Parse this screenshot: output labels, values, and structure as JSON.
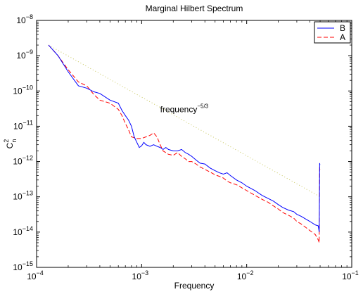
{
  "chart_data": {
    "type": "line",
    "title": "Marginal Hilbert Spectrum",
    "xlabel": "Frequency",
    "ylabel": "C",
    "ylabel_sup": "2",
    "ylabel_sub": "n",
    "xscale": "log",
    "yscale": "log",
    "xlim": [
      0.0001,
      0.1
    ],
    "ylim": [
      1e-15,
      1e-08
    ],
    "grid": false,
    "legend_position": "top-right",
    "x_ticks": [
      {
        "base": "10",
        "exp": "−4"
      },
      {
        "base": "10",
        "exp": "−3"
      },
      {
        "base": "10",
        "exp": "−2"
      },
      {
        "base": "10",
        "exp": "−1"
      }
    ],
    "y_ticks": [
      {
        "base": "10",
        "exp": "−15"
      },
      {
        "base": "10",
        "exp": "−14"
      },
      {
        "base": "10",
        "exp": "−13"
      },
      {
        "base": "10",
        "exp": "−12"
      },
      {
        "base": "10",
        "exp": "−11"
      },
      {
        "base": "10",
        "exp": "−10"
      },
      {
        "base": "10",
        "exp": "−9"
      },
      {
        "base": "10",
        "exp": "−8"
      }
    ],
    "annotation": {
      "base": "frequency",
      "exp": "−5/3",
      "x": 0.0015,
      "y": 1e-10
    },
    "reference_line": {
      "x": [
        0.00013,
        0.05
      ],
      "y": [
        2e-09,
        1e-13
      ],
      "color": "#c8c860",
      "style": "dotted"
    },
    "series": [
      {
        "name": "B",
        "color": "#0000ff",
        "style": "solid",
        "points": [
          [
            0.00013,
            2e-09
          ],
          [
            0.00016,
            1e-09
          ],
          [
            0.0002,
            3.5e-10
          ],
          [
            0.00025,
            1.4e-10
          ],
          [
            0.0003,
            1.2e-10
          ],
          [
            0.00035,
            9.5e-11
          ],
          [
            0.0004,
            8.5e-11
          ],
          [
            0.0005,
            5.5e-11
          ],
          [
            0.0006,
            4.5e-11
          ],
          [
            0.00065,
            2.8e-11
          ],
          [
            0.0007,
            2e-11
          ],
          [
            0.00075,
            1.5e-11
          ],
          [
            0.0008,
            1e-11
          ],
          [
            0.00085,
            5e-12
          ],
          [
            0.0009,
            3.5e-12
          ],
          [
            0.00095,
            2.5e-12
          ],
          [
            0.001,
            2.8e-12
          ],
          [
            0.00105,
            3.5e-12
          ],
          [
            0.0011,
            3e-12
          ],
          [
            0.0012,
            2.7e-12
          ],
          [
            0.0013,
            3e-12
          ],
          [
            0.0014,
            2.7e-12
          ],
          [
            0.0015,
            2.5e-12
          ],
          [
            0.0016,
            2.2e-12
          ],
          [
            0.0017,
            2.5e-12
          ],
          [
            0.0018,
            2.2e-12
          ],
          [
            0.002,
            2e-12
          ],
          [
            0.0022,
            2e-12
          ],
          [
            0.0024,
            2.2e-12
          ],
          [
            0.0026,
            1.8e-12
          ],
          [
            0.0028,
            1.6e-12
          ],
          [
            0.003,
            1.4e-12
          ],
          [
            0.0033,
            1.1e-12
          ],
          [
            0.0036,
            9e-13
          ],
          [
            0.004,
            8.5e-13
          ],
          [
            0.0045,
            6.5e-13
          ],
          [
            0.005,
            5.5e-13
          ],
          [
            0.0055,
            4.8e-13
          ],
          [
            0.006,
            4.4e-13
          ],
          [
            0.0065,
            4.8e-13
          ],
          [
            0.007,
            4e-13
          ],
          [
            0.008,
            3e-13
          ],
          [
            0.009,
            2.5e-13
          ],
          [
            0.01,
            2e-13
          ],
          [
            0.012,
            1.5e-13
          ],
          [
            0.014,
            1.1e-13
          ],
          [
            0.016,
            9e-14
          ],
          [
            0.018,
            7.5e-14
          ],
          [
            0.02,
            6e-14
          ],
          [
            0.022,
            5e-14
          ],
          [
            0.025,
            4.2e-14
          ],
          [
            0.028,
            3.8e-14
          ],
          [
            0.03,
            3.2e-14
          ],
          [
            0.033,
            2.8e-14
          ],
          [
            0.036,
            2.4e-14
          ],
          [
            0.04,
            2e-14
          ],
          [
            0.045,
            1.6e-14
          ],
          [
            0.048,
            1.5e-14
          ],
          [
            0.049,
            1e-14
          ],
          [
            0.0495,
            9e-13
          ],
          [
            0.0498,
            8e-13
          ]
        ]
      },
      {
        "name": "A",
        "color": "#ff0000",
        "style": "dashed",
        "points": [
          [
            0.00013,
            2e-09
          ],
          [
            0.00016,
            1e-09
          ],
          [
            0.0002,
            4e-10
          ],
          [
            0.00025,
            1.8e-10
          ],
          [
            0.0003,
            1.4e-10
          ],
          [
            0.00035,
            8e-11
          ],
          [
            0.0004,
            5.5e-11
          ],
          [
            0.0005,
            4.5e-11
          ],
          [
            0.0006,
            3e-11
          ],
          [
            0.00065,
            2e-11
          ],
          [
            0.0007,
            1.2e-11
          ],
          [
            0.00075,
            8e-12
          ],
          [
            0.0008,
            5e-12
          ],
          [
            0.0009,
            4.5e-12
          ],
          [
            0.001,
            4.5e-12
          ],
          [
            0.0011,
            5e-12
          ],
          [
            0.0012,
            5.5e-12
          ],
          [
            0.0013,
            6.5e-12
          ],
          [
            0.0014,
            5e-12
          ],
          [
            0.0015,
            3e-12
          ],
          [
            0.0016,
            2e-12
          ],
          [
            0.0018,
            1.6e-12
          ],
          [
            0.002,
            1.5e-12
          ],
          [
            0.0022,
            1.8e-12
          ],
          [
            0.0024,
            1.4e-12
          ],
          [
            0.0026,
            1.2e-12
          ],
          [
            0.0028,
            1e-12
          ],
          [
            0.003,
            1e-12
          ],
          [
            0.0033,
            8.5e-13
          ],
          [
            0.0036,
            7e-13
          ],
          [
            0.004,
            6e-13
          ],
          [
            0.0045,
            5e-13
          ],
          [
            0.005,
            4.2e-13
          ],
          [
            0.0055,
            3.8e-13
          ],
          [
            0.006,
            3.4e-13
          ],
          [
            0.0065,
            2.8e-13
          ],
          [
            0.007,
            2.5e-13
          ],
          [
            0.008,
            2.2e-13
          ],
          [
            0.009,
            1.8e-13
          ],
          [
            0.01,
            1.5e-13
          ],
          [
            0.012,
            1.1e-13
          ],
          [
            0.014,
            8.5e-14
          ],
          [
            0.016,
            7e-14
          ],
          [
            0.018,
            5.5e-14
          ],
          [
            0.02,
            4.5e-14
          ],
          [
            0.022,
            3.6e-14
          ],
          [
            0.025,
            3e-14
          ],
          [
            0.028,
            2.5e-14
          ],
          [
            0.03,
            2e-14
          ],
          [
            0.033,
            1.7e-14
          ],
          [
            0.036,
            1.4e-14
          ],
          [
            0.04,
            1.1e-14
          ],
          [
            0.045,
            8.5e-15
          ],
          [
            0.048,
            6e-15
          ],
          [
            0.049,
            5e-15
          ],
          [
            0.0495,
            7e-13
          ],
          [
            0.0498,
            6e-13
          ]
        ]
      }
    ]
  }
}
